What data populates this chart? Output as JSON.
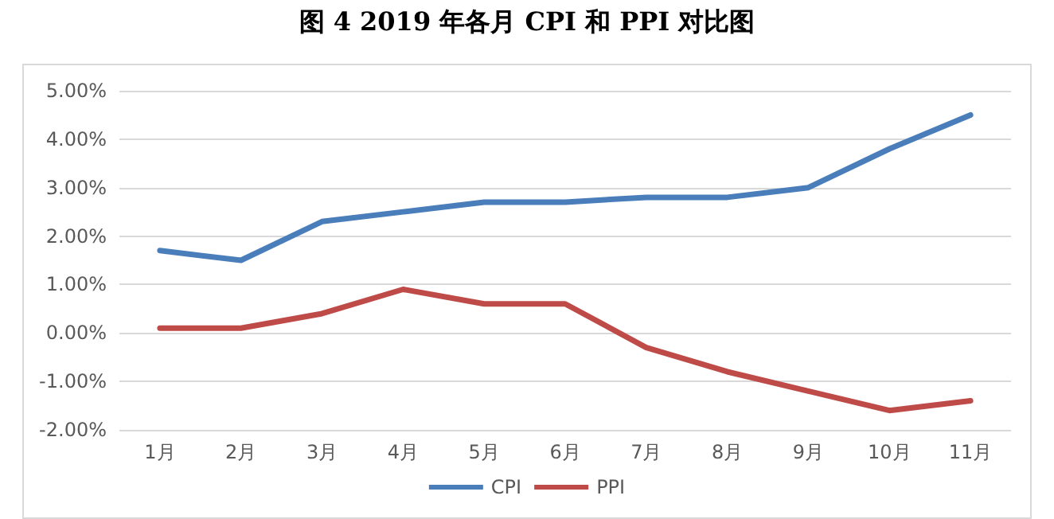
{
  "chart_data": {
    "type": "line",
    "title": "图 4 2019 年各月 CPI 和 PPI 对比图",
    "categories": [
      "1月",
      "2月",
      "3月",
      "4月",
      "5月",
      "6月",
      "7月",
      "8月",
      "9月",
      "10月",
      "11月"
    ],
    "series": [
      {
        "name": "CPI",
        "color": "#4a7ebb",
        "values": [
          1.7,
          1.5,
          2.3,
          2.5,
          2.7,
          2.7,
          2.8,
          2.8,
          3.0,
          3.8,
          4.5
        ]
      },
      {
        "name": "PPI",
        "color": "#be4b48",
        "values": [
          0.1,
          0.1,
          0.4,
          0.9,
          0.6,
          0.6,
          -0.3,
          -0.8,
          -1.2,
          -1.6,
          -1.4
        ]
      }
    ],
    "ylim": [
      -2,
      5
    ],
    "yticks": [
      {
        "value": -2,
        "label": "-2.00%"
      },
      {
        "value": -1,
        "label": "-1.00%"
      },
      {
        "value": 0,
        "label": "0.00%"
      },
      {
        "value": 1,
        "label": "1.00%"
      },
      {
        "value": 2,
        "label": "2.00%"
      },
      {
        "value": 3,
        "label": "3.00%"
      },
      {
        "value": 4,
        "label": "4.00%"
      },
      {
        "value": 5,
        "label": "5.00%"
      }
    ],
    "grid": "y",
    "legend": "bottom",
    "marker": "none",
    "line_style": "solid"
  }
}
